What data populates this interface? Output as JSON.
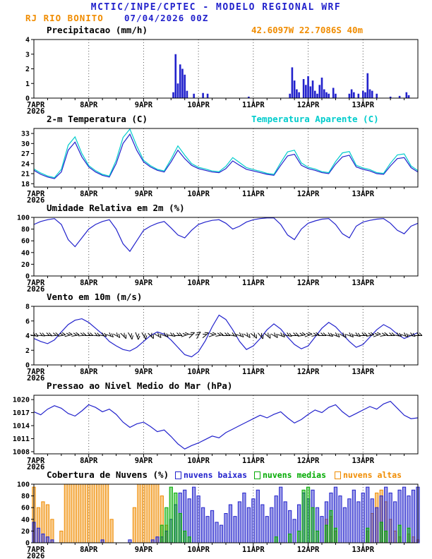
{
  "colors": {
    "blue": "#2222cc",
    "cyan": "#00cccc",
    "orange": "#f08c00",
    "green": "#00aa00",
    "black": "#000000"
  },
  "header": {
    "title": "MCTIC/INPE/CPTEC - MODELO REGIONAL WRF",
    "station": "RJ RIO BONITO",
    "run": "07/04/2026 00Z",
    "coords": "42.6097W 22.7086S 40m"
  },
  "x_axis": {
    "tick_labels": [
      "7APR",
      "8APR",
      "9APR",
      "10APR",
      "11APR",
      "12APR",
      "13APR"
    ],
    "year_label": "2026",
    "hours_total": 168
  },
  "chart_data": [
    {
      "id": "precipitation",
      "type": "bar",
      "title": "Precipitacao (mm/h)",
      "ylim": [
        0,
        4
      ],
      "yticks": [
        0,
        1,
        2,
        3,
        4
      ],
      "color": "#2222cc",
      "events": [
        [
          61,
          0.4
        ],
        [
          62,
          3.0
        ],
        [
          63,
          1.0
        ],
        [
          64,
          2.3
        ],
        [
          65,
          2.0
        ],
        [
          66,
          1.6
        ],
        [
          67,
          0.5
        ],
        [
          70,
          0.3
        ],
        [
          74,
          0.35
        ],
        [
          76,
          0.3
        ],
        [
          94,
          0.1
        ],
        [
          112,
          0.3
        ],
        [
          113,
          2.1
        ],
        [
          114,
          1.2
        ],
        [
          115,
          0.6
        ],
        [
          116,
          0.4
        ],
        [
          118,
          1.3
        ],
        [
          119,
          0.9
        ],
        [
          120,
          1.5
        ],
        [
          121,
          0.8
        ],
        [
          122,
          1.2
        ],
        [
          123,
          0.5
        ],
        [
          124,
          0.3
        ],
        [
          125,
          0.9
        ],
        [
          126,
          1.4
        ],
        [
          127,
          0.6
        ],
        [
          128,
          0.4
        ],
        [
          129,
          0.3
        ],
        [
          131,
          0.7
        ],
        [
          132,
          0.3
        ],
        [
          138,
          0.3
        ],
        [
          139,
          0.6
        ],
        [
          140,
          0.4
        ],
        [
          142,
          0.3
        ],
        [
          144,
          0.5
        ],
        [
          145,
          0.4
        ],
        [
          146,
          1.7
        ],
        [
          147,
          0.6
        ],
        [
          148,
          0.5
        ],
        [
          150,
          0.3
        ],
        [
          156,
          0.1
        ],
        [
          160,
          0.15
        ],
        [
          163,
          0.4
        ],
        [
          164,
          0.2
        ]
      ]
    },
    {
      "id": "temperature",
      "type": "line",
      "title": "2-m Temperatura (C)",
      "aux_label": "Temperatura Aparente (C)",
      "ylim": [
        17,
        34.5
      ],
      "yticks": [
        18,
        21,
        24,
        27,
        30,
        33
      ],
      "step": 3,
      "series": [
        {
          "name": "2-m Temperatura (C)",
          "color": "#2222cc",
          "values": [
            22.0,
            20.8,
            20.0,
            19.5,
            21.5,
            28.0,
            30.4,
            26.0,
            23.0,
            21.5,
            20.5,
            20.0,
            24.0,
            30.0,
            32.8,
            28.0,
            24.5,
            23.0,
            22.0,
            21.5,
            24.5,
            28.0,
            25.5,
            23.5,
            22.5,
            22.0,
            21.5,
            21.3,
            22.5,
            24.8,
            23.5,
            22.3,
            21.8,
            21.3,
            20.8,
            20.5,
            23.5,
            26.3,
            26.8,
            23.5,
            22.5,
            22.0,
            21.3,
            21.0,
            23.8,
            26.0,
            26.5,
            23.0,
            22.3,
            21.8,
            21.0,
            20.8,
            23.3,
            25.5,
            25.8,
            22.8,
            21.5
          ]
        },
        {
          "name": "Temperatura Aparente (C)",
          "color": "#00cccc",
          "values": [
            22.4,
            21.2,
            20.3,
            19.8,
            22.3,
            29.5,
            32.0,
            27.0,
            23.4,
            21.9,
            20.8,
            20.3,
            25.0,
            31.8,
            34.3,
            29.3,
            25.0,
            23.4,
            22.3,
            21.8,
            25.3,
            29.3,
            26.5,
            24.0,
            22.9,
            22.4,
            21.8,
            21.6,
            23.2,
            25.8,
            24.3,
            22.8,
            22.2,
            21.7,
            21.1,
            20.8,
            24.3,
            27.5,
            28.0,
            24.2,
            22.9,
            22.4,
            21.6,
            21.3,
            24.6,
            27.2,
            27.6,
            23.5,
            22.7,
            22.2,
            21.3,
            21.1,
            24.1,
            26.6,
            26.9,
            23.3,
            21.9
          ]
        }
      ]
    },
    {
      "id": "humidity",
      "type": "line",
      "title": "Umidade Relativa em 2m (%)",
      "ylim": [
        0,
        100
      ],
      "yticks": [
        0,
        20,
        40,
        60,
        80,
        100
      ],
      "step": 3,
      "series": [
        {
          "name": "Umidade Relativa",
          "color": "#2222cc",
          "values": [
            88,
            93,
            96,
            98,
            88,
            62,
            50,
            65,
            80,
            88,
            93,
            96,
            80,
            55,
            42,
            60,
            78,
            85,
            90,
            93,
            82,
            70,
            65,
            78,
            88,
            92,
            95,
            96,
            90,
            80,
            85,
            92,
            96,
            98,
            99,
            99,
            88,
            70,
            62,
            80,
            90,
            94,
            97,
            98,
            88,
            72,
            65,
            85,
            92,
            95,
            97,
            98,
            90,
            78,
            72,
            85,
            90
          ]
        }
      ]
    },
    {
      "id": "wind",
      "type": "wind",
      "title": "Vento em 10m (m/s)",
      "ylim": [
        0,
        8
      ],
      "yticks": [
        0,
        2,
        4,
        6,
        8
      ],
      "step": 3,
      "series": [
        {
          "name": "Velocidade do Vento",
          "color": "#2222cc",
          "values": [
            3.6,
            3.2,
            2.9,
            3.4,
            4.5,
            5.5,
            6.1,
            6.3,
            5.8,
            5.0,
            4.2,
            3.2,
            2.6,
            2.1,
            1.9,
            2.4,
            3.2,
            4.0,
            4.5,
            4.2,
            3.4,
            2.4,
            1.4,
            1.1,
            1.8,
            3.3,
            5.2,
            6.8,
            6.2,
            4.8,
            3.2,
            2.1,
            2.6,
            3.6,
            4.8,
            5.6,
            4.9,
            3.8,
            2.8,
            2.2,
            2.6,
            3.8,
            5.0,
            5.8,
            5.2,
            4.2,
            3.2,
            2.4,
            2.8,
            3.8,
            4.8,
            5.5,
            5.0,
            4.2,
            3.6,
            4.0,
            4.4
          ]
        }
      ],
      "barbs": {
        "y": 4.0,
        "step": 3,
        "color": "#000000",
        "dirs": [
          10,
          5,
          0,
          -5,
          -10,
          -15,
          -10,
          -5,
          0,
          5,
          10,
          20,
          30,
          45,
          60,
          70,
          60,
          45,
          30,
          20,
          10,
          0,
          -20,
          -45,
          -60,
          -40,
          -20,
          -10,
          0,
          10,
          20,
          30,
          40,
          50,
          40,
          30,
          20,
          10,
          0,
          -10,
          -20,
          -10,
          0,
          10,
          20,
          30,
          20,
          10,
          0,
          -10,
          -20,
          -10,
          0,
          10,
          20,
          10,
          0
        ]
      }
    },
    {
      "id": "pressure",
      "type": "line",
      "title": "Pressao ao Nivel Medio do Mar (hPa)",
      "ylim": [
        1007.5,
        1021
      ],
      "yticks": [
        1008,
        1011,
        1014,
        1017,
        1020
      ],
      "step": 3,
      "series": [
        {
          "name": "Pressao",
          "color": "#2222cc",
          "values": [
            1017.2,
            1016.5,
            1017.8,
            1018.6,
            1018.0,
            1016.8,
            1016.2,
            1017.4,
            1018.8,
            1018.2,
            1017.2,
            1017.8,
            1016.6,
            1014.8,
            1013.6,
            1014.4,
            1014.8,
            1013.8,
            1012.6,
            1013.0,
            1011.5,
            1009.8,
            1008.6,
            1009.4,
            1010.0,
            1010.8,
            1011.6,
            1011.2,
            1012.4,
            1013.2,
            1014.0,
            1014.8,
            1015.6,
            1016.4,
            1015.8,
            1016.6,
            1017.2,
            1015.8,
            1014.6,
            1015.4,
            1016.6,
            1017.6,
            1017.0,
            1018.2,
            1018.8,
            1017.2,
            1016.0,
            1016.8,
            1017.6,
            1018.4,
            1017.8,
            1019.0,
            1019.6,
            1018.0,
            1016.4,
            1015.6,
            1015.8
          ]
        }
      ]
    },
    {
      "id": "clouds",
      "type": "bar-multi",
      "title": "Cobertura de Nuvens (%)",
      "ylim": [
        0,
        100
      ],
      "yticks": [
        0,
        20,
        40,
        60,
        80,
        100
      ],
      "step": 2,
      "draw_order": [
        2,
        0,
        1
      ],
      "series": [
        {
          "name": "nuvens baixas",
          "color": "#2222cc",
          "values": [
            35,
            25,
            15,
            10,
            5,
            0,
            0,
            0,
            0,
            0,
            0,
            0,
            0,
            0,
            0,
            5,
            0,
            0,
            0,
            0,
            0,
            5,
            0,
            0,
            0,
            0,
            5,
            10,
            10,
            20,
            40,
            65,
            85,
            90,
            75,
            95,
            80,
            60,
            45,
            55,
            35,
            30,
            50,
            65,
            45,
            70,
            85,
            60,
            75,
            90,
            65,
            45,
            60,
            80,
            95,
            70,
            55,
            40,
            65,
            85,
            75,
            90,
            60,
            45,
            70,
            85,
            95,
            80,
            60,
            75,
            90,
            70,
            85,
            95,
            75,
            60,
            80,
            95,
            85,
            70,
            90,
            95,
            80,
            90,
            95
          ]
        },
        {
          "name": "nuvens medias",
          "color": "#00aa00",
          "values": [
            0,
            0,
            0,
            0,
            0,
            0,
            0,
            0,
            0,
            0,
            0,
            0,
            0,
            0,
            0,
            0,
            0,
            0,
            0,
            0,
            0,
            0,
            0,
            0,
            0,
            0,
            0,
            0,
            30,
            60,
            95,
            85,
            50,
            20,
            10,
            0,
            0,
            0,
            0,
            0,
            0,
            0,
            0,
            0,
            0,
            0,
            0,
            0,
            0,
            0,
            0,
            0,
            0,
            10,
            0,
            0,
            15,
            0,
            20,
            90,
            95,
            60,
            20,
            0,
            30,
            55,
            25,
            0,
            0,
            0,
            0,
            0,
            0,
            25,
            0,
            0,
            35,
            20,
            0,
            0,
            30,
            0,
            25,
            0,
            0
          ]
        },
        {
          "name": "nuvens altas",
          "color": "#f08c00",
          "values": [
            95,
            60,
            70,
            65,
            40,
            0,
            20,
            100,
            100,
            100,
            100,
            100,
            100,
            100,
            100,
            100,
            100,
            40,
            0,
            0,
            0,
            0,
            60,
            100,
            100,
            100,
            100,
            100,
            80,
            30,
            0,
            0,
            0,
            0,
            0,
            0,
            0,
            0,
            0,
            0,
            0,
            0,
            0,
            0,
            0,
            0,
            0,
            0,
            0,
            0,
            0,
            0,
            0,
            0,
            0,
            0,
            0,
            0,
            0,
            0,
            0,
            0,
            0,
            0,
            40,
            45,
            20,
            0,
            0,
            0,
            0,
            0,
            0,
            20,
            50,
            85,
            90,
            70,
            40,
            20,
            10,
            0,
            15,
            10,
            5
          ]
        }
      ]
    }
  ]
}
